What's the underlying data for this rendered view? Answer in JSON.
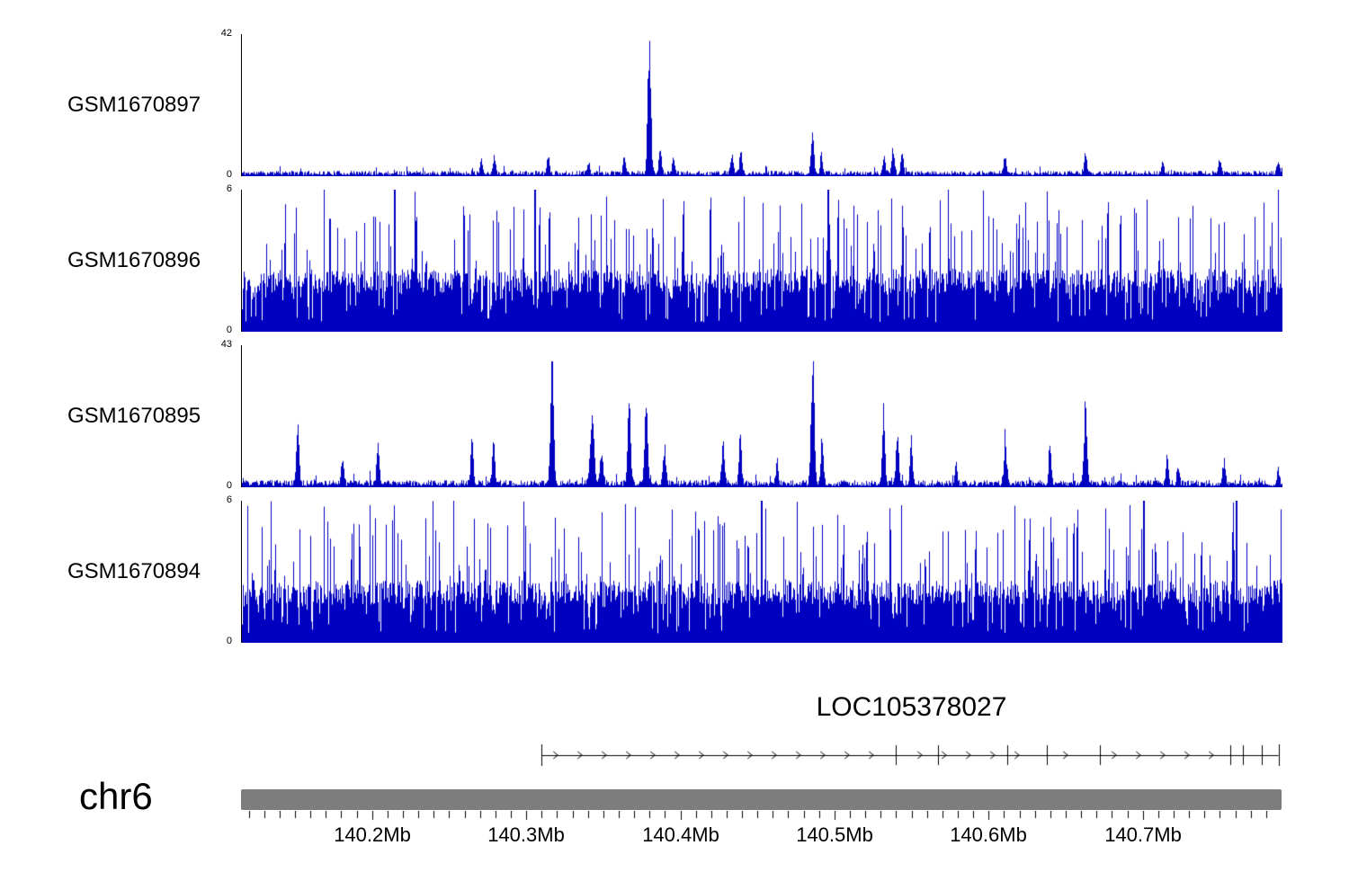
{
  "chart_data": {
    "type": "area",
    "title": "",
    "legend": "none",
    "grid": false,
    "region": {
      "chrom": "chr6",
      "start_mb": 140.115,
      "end_mb": 140.79,
      "unit": "Mb"
    },
    "colors": {
      "signal": "#0000c0",
      "chrom_bar": "#7d7d7d",
      "axis": "#000000",
      "background": "#ffffff"
    },
    "tracks": [
      {
        "label": "GSM1670897",
        "ymin": 0,
        "ymax": 42,
        "style": "peaks",
        "seed": 11,
        "baseline": 0.9,
        "peaks": [
          {
            "pos_mb": 140.27,
            "h": 5,
            "w": 0.0008
          },
          {
            "pos_mb": 140.2785,
            "h": 6,
            "w": 0.0008
          },
          {
            "pos_mb": 140.3134,
            "h": 6,
            "w": 0.0008
          },
          {
            "pos_mb": 140.3395,
            "h": 4,
            "w": 0.0008
          },
          {
            "pos_mb": 140.3628,
            "h": 5,
            "w": 0.0008
          },
          {
            "pos_mb": 140.379,
            "h": 42,
            "w": 0.001
          },
          {
            "pos_mb": 140.386,
            "h": 8,
            "w": 0.0008
          },
          {
            "pos_mb": 140.3948,
            "h": 5,
            "w": 0.0008
          },
          {
            "pos_mb": 140.4326,
            "h": 6,
            "w": 0.0008
          },
          {
            "pos_mb": 140.4384,
            "h": 7,
            "w": 0.0008
          },
          {
            "pos_mb": 140.4849,
            "h": 12,
            "w": 0.0009
          },
          {
            "pos_mb": 140.4907,
            "h": 6,
            "w": 0.0008
          },
          {
            "pos_mb": 140.5314,
            "h": 6,
            "w": 0.0008
          },
          {
            "pos_mb": 140.5372,
            "h": 8,
            "w": 0.0008
          },
          {
            "pos_mb": 140.543,
            "h": 7,
            "w": 0.0008
          },
          {
            "pos_mb": 140.61,
            "h": 5,
            "w": 0.0008
          },
          {
            "pos_mb": 140.662,
            "h": 6,
            "w": 0.0008
          },
          {
            "pos_mb": 140.712,
            "h": 4,
            "w": 0.0008
          },
          {
            "pos_mb": 140.749,
            "h": 4,
            "w": 0.0008
          },
          {
            "pos_mb": 140.787,
            "h": 4,
            "w": 0.0008
          }
        ]
      },
      {
        "label": "GSM1670896",
        "ymin": 0,
        "ymax": 6,
        "style": "dense",
        "seed": 22,
        "fill_level": 2.3,
        "spike_max": 6,
        "spikes_mb": [
          140.168,
          140.214,
          140.305,
          140.495,
          140.573,
          140.787
        ]
      },
      {
        "label": "GSM1670895",
        "ymin": 0,
        "ymax": 43,
        "style": "peaks",
        "seed": 33,
        "baseline": 1.2,
        "peaks": [
          {
            "pos_mb": 140.151,
            "h": 20,
            "w": 0.0009
          },
          {
            "pos_mb": 140.18,
            "h": 8,
            "w": 0.0008
          },
          {
            "pos_mb": 140.203,
            "h": 14,
            "w": 0.0008
          },
          {
            "pos_mb": 140.264,
            "h": 17,
            "w": 0.0008
          },
          {
            "pos_mb": 140.278,
            "h": 16,
            "w": 0.0008
          },
          {
            "pos_mb": 140.316,
            "h": 40,
            "w": 0.001
          },
          {
            "pos_mb": 140.342,
            "h": 22,
            "w": 0.0012
          },
          {
            "pos_mb": 140.348,
            "h": 10,
            "w": 0.001
          },
          {
            "pos_mb": 140.366,
            "h": 27,
            "w": 0.0009
          },
          {
            "pos_mb": 140.377,
            "h": 30,
            "w": 0.0009
          },
          {
            "pos_mb": 140.389,
            "h": 12,
            "w": 0.0009
          },
          {
            "pos_mb": 140.427,
            "h": 14,
            "w": 0.0008
          },
          {
            "pos_mb": 140.438,
            "h": 17,
            "w": 0.0008
          },
          {
            "pos_mb": 140.462,
            "h": 7,
            "w": 0.0008
          },
          {
            "pos_mb": 140.485,
            "h": 43,
            "w": 0.001
          },
          {
            "pos_mb": 140.491,
            "h": 15,
            "w": 0.0008
          },
          {
            "pos_mb": 140.531,
            "h": 24,
            "w": 0.0008
          },
          {
            "pos_mb": 140.54,
            "h": 17,
            "w": 0.0008
          },
          {
            "pos_mb": 140.549,
            "h": 16,
            "w": 0.0008
          },
          {
            "pos_mb": 140.578,
            "h": 6,
            "w": 0.0008
          },
          {
            "pos_mb": 140.61,
            "h": 14,
            "w": 0.0009
          },
          {
            "pos_mb": 140.639,
            "h": 13,
            "w": 0.0008
          },
          {
            "pos_mb": 140.662,
            "h": 27,
            "w": 0.0009
          },
          {
            "pos_mb": 140.715,
            "h": 9,
            "w": 0.0008
          },
          {
            "pos_mb": 140.722,
            "h": 6,
            "w": 0.0008
          },
          {
            "pos_mb": 140.752,
            "h": 8,
            "w": 0.0008
          },
          {
            "pos_mb": 140.787,
            "h": 5,
            "w": 0.0008
          }
        ]
      },
      {
        "label": "GSM1670894",
        "ymin": 0,
        "ymax": 6,
        "style": "dense",
        "seed": 44,
        "fill_level": 2.3,
        "spike_max": 6,
        "spikes_mb": [
          140.252,
          140.452,
          140.7,
          140.76
        ]
      }
    ],
    "gene_track": {
      "label": "LOC105378027",
      "strand": "+",
      "start_mb": 140.31,
      "end_mb": 140.788,
      "exon_ticks_mb": [
        140.54,
        140.567,
        140.612,
        140.638,
        140.672,
        140.757,
        140.765,
        140.777
      ]
    },
    "axis": {
      "tick_labels": [
        "140.2Mb",
        "140.3Mb",
        "140.4Mb",
        "140.5Mb",
        "140.6Mb",
        "140.7Mb"
      ],
      "major_ticks_mb": [
        140.2,
        140.3,
        140.4,
        140.5,
        140.6,
        140.7
      ],
      "minor_tick_interval_mb": 0.01
    }
  }
}
